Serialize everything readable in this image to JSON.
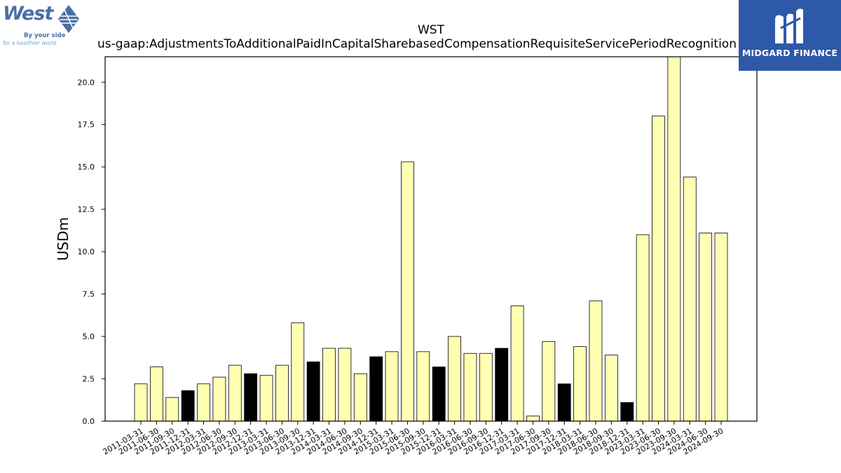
{
  "brand": {
    "west_logo_word": "West",
    "west_tagline_1": "By your side",
    "west_tagline_2": "for a healthier world",
    "publisher_name": "MIDGARD FINANCE",
    "publisher_color": "#2e59a8"
  },
  "chart_data": {
    "type": "bar",
    "title": "WST",
    "subtitle": "us-gaap:AdjustmentsToAdditionalPaidInCapitalSharebasedCompensationRequisiteServicePeriodRecognition",
    "xlabel": "",
    "ylabel": "USDm",
    "ylim": [
      0,
      21.5
    ],
    "yticks": [
      "0.0",
      "2.5",
      "5.0",
      "7.5",
      "10.0",
      "12.5",
      "15.0",
      "17.5",
      "20.0"
    ],
    "colors": {
      "default": "#ffffb3",
      "highlight": "#000000",
      "edge": "#000000"
    },
    "categories": [
      "2011-03-31",
      "2011-06-30",
      "2011-09-30",
      "2011-12-31",
      "2012-03-31",
      "2012-06-30",
      "2012-09-30",
      "2012-12-31",
      "2013-03-31",
      "2013-06-30",
      "2013-09-30",
      "2013-12-31",
      "2014-03-31",
      "2014-06-30",
      "2014-09-30",
      "2014-12-31",
      "2015-03-31",
      "2015-06-30",
      "2015-09-30",
      "2015-12-31",
      "2016-03-31",
      "2016-06-30",
      "2016-09-30",
      "2016-12-31",
      "2017-03-31",
      "2017-06-30",
      "2017-09-30",
      "2017-12-31",
      "2018-03-31",
      "2018-06-30",
      "2018-09-30",
      "2018-12-31",
      "2023-03-31",
      "2023-06-30",
      "2023-09-30",
      "2024-03-31",
      "2024-06-30",
      "2024-09-30"
    ],
    "values": [
      2.2,
      3.2,
      1.4,
      1.8,
      2.2,
      2.6,
      3.3,
      2.8,
      2.7,
      3.3,
      5.8,
      3.5,
      4.3,
      4.3,
      2.8,
      3.8,
      4.1,
      15.3,
      4.1,
      3.2,
      5.0,
      4.0,
      4.0,
      4.3,
      6.8,
      0.3,
      4.7,
      2.2,
      4.4,
      7.1,
      3.9,
      1.1,
      11.0,
      18.0,
      21.6,
      14.4,
      11.1,
      11.1
    ],
    "highlight": [
      false,
      false,
      false,
      true,
      false,
      false,
      false,
      true,
      false,
      false,
      false,
      true,
      false,
      false,
      false,
      true,
      false,
      false,
      false,
      true,
      false,
      false,
      false,
      true,
      false,
      false,
      false,
      true,
      false,
      false,
      false,
      true,
      false,
      false,
      false,
      false,
      false,
      false
    ],
    "grid": false,
    "legend": "none"
  }
}
